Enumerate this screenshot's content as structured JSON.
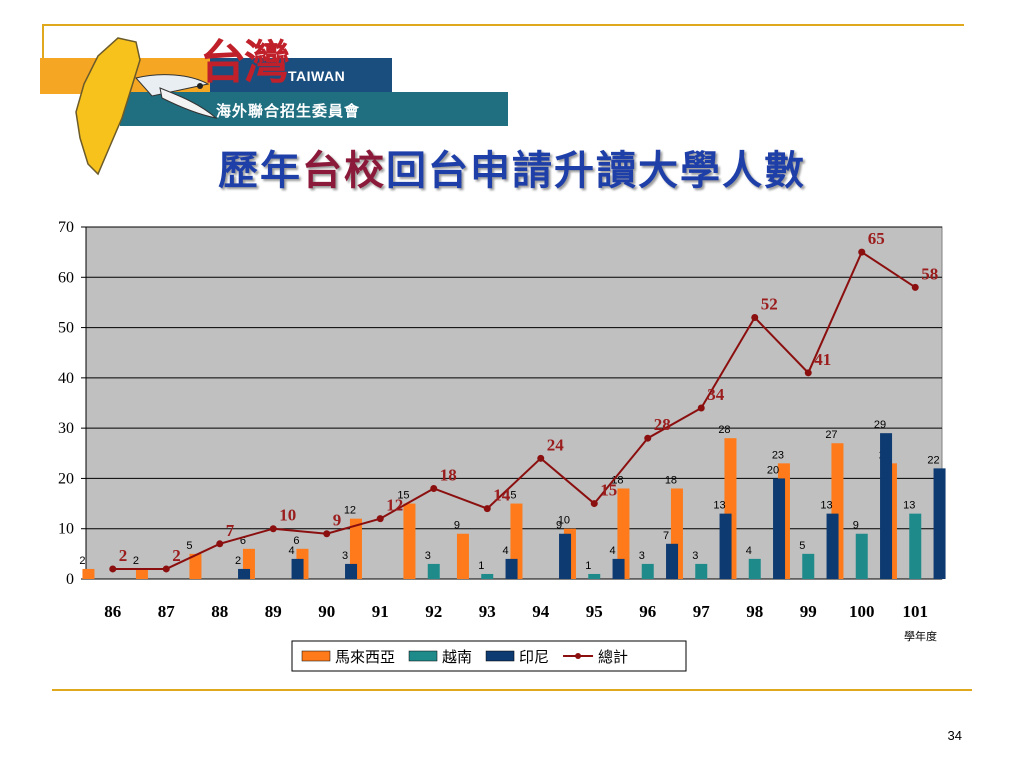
{
  "slide": {
    "title_part1": "歷年",
    "title_part2": "台校",
    "title_part3": "回台申請升讀大學人數",
    "page_number": "34"
  },
  "logo": {
    "zh": "台灣",
    "en": "TAIWAN",
    "org": "海外聯合招生委員會"
  },
  "chart_data": {
    "type": "bar",
    "title": "",
    "categories": [
      "86",
      "87",
      "88",
      "89",
      "90",
      "91",
      "92",
      "93",
      "94",
      "95",
      "96",
      "97",
      "98",
      "99",
      "100",
      "101"
    ],
    "xunit": "學年度",
    "ylim": [
      0,
      70
    ],
    "yticks": [
      0,
      10,
      20,
      30,
      40,
      50,
      60,
      70
    ],
    "grid": true,
    "legend_position": "bottom-center",
    "series": [
      {
        "name": "馬來西亞",
        "kind": "bar",
        "color": "#ff7a1a",
        "values": [
          2,
          2,
          5,
          6,
          6,
          12,
          15,
          9,
          15,
          10,
          18,
          18,
          28,
          23,
          27,
          23
        ]
      },
      {
        "name": "越南",
        "kind": "bar",
        "color": "#1f8a8a",
        "values": [
          0,
          0,
          0,
          0,
          0,
          0,
          3,
          1,
          0,
          1,
          3,
          3,
          4,
          5,
          9,
          13
        ]
      },
      {
        "name": "印尼",
        "kind": "bar",
        "color": "#0d3a70",
        "values": [
          0,
          0,
          2,
          4,
          3,
          0,
          0,
          4,
          9,
          4,
          7,
          13,
          20,
          13,
          29,
          22
        ]
      },
      {
        "name": "總計",
        "kind": "line",
        "color": "#8b0f0f",
        "values": [
          2,
          2,
          7,
          10,
          9,
          12,
          18,
          14,
          24,
          15,
          28,
          34,
          52,
          41,
          65,
          58
        ]
      }
    ]
  }
}
